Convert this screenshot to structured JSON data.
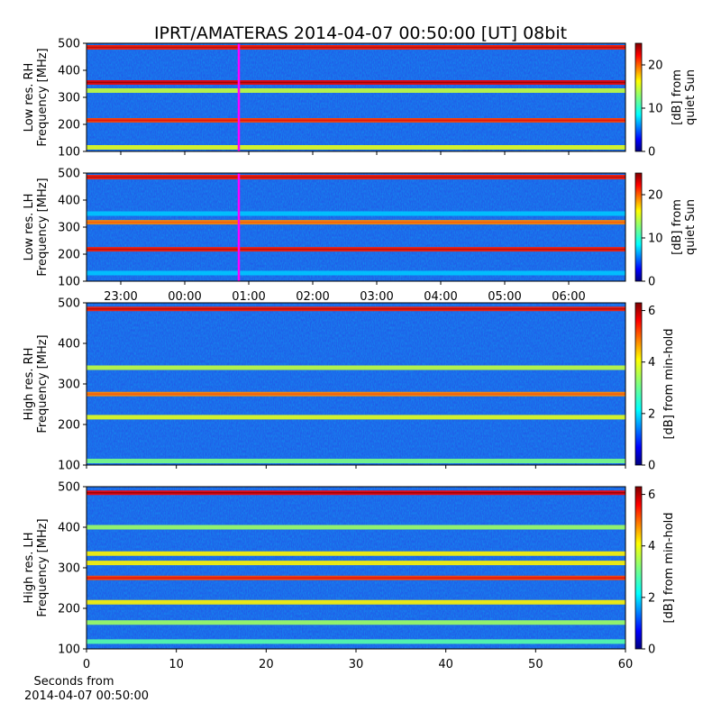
{
  "figure": {
    "title": "IPRT/AMATERAS 2014-04-07 00:50:00 [UT]   08bit"
  },
  "colors": {
    "cmap": [
      "#00007f",
      "#0000ff",
      "#007fff",
      "#00ffff",
      "#7fff7f",
      "#ffff00",
      "#ff7f00",
      "#ff0000",
      "#7f0000"
    ],
    "marker_line": "#ff00ff",
    "background_spectrum": "#1f5fe8"
  },
  "chart_data": [
    {
      "type": "heatmap",
      "ylabel_line1": "Low res. RH",
      "ylabel_line2": "Frequency [MHz]",
      "ylim": [
        100,
        500
      ],
      "yticks": [
        "100",
        "200",
        "300",
        "400",
        "500"
      ],
      "xticks": [],
      "marker_time": "00:50",
      "colorbar": {
        "label_line1": "[dB] from",
        "label_line2": "quiet Sun",
        "range": [
          0,
          25
        ],
        "ticks": [
          "0",
          "10",
          "20"
        ]
      },
      "bands_mhz": [
        {
          "f": 485,
          "level": 0.85
        },
        {
          "f": 355,
          "level": 0.9
        },
        {
          "f": 325,
          "level": 0.45
        },
        {
          "f": 215,
          "level": 0.8
        },
        {
          "f": 115,
          "level": 0.5
        }
      ]
    },
    {
      "type": "heatmap",
      "ylabel_line1": "Low res. LH",
      "ylabel_line2": "Frequency [MHz]",
      "ylim": [
        100,
        500
      ],
      "yticks": [
        "100",
        "200",
        "300",
        "400",
        "500"
      ],
      "xticks": [
        "23:00",
        "00:00",
        "01:00",
        "02:00",
        "03:00",
        "04:00",
        "05:00",
        "06:00"
      ],
      "marker_time": "00:50",
      "colorbar": {
        "label_line1": "[dB] from",
        "label_line2": "quiet Sun",
        "range": [
          0,
          25
        ],
        "ticks": [
          "0",
          "10",
          "20"
        ]
      },
      "bands_mhz": [
        {
          "f": 485,
          "level": 0.85
        },
        {
          "f": 350,
          "level": 0.1
        },
        {
          "f": 318,
          "level": 0.7
        },
        {
          "f": 218,
          "level": 0.85
        },
        {
          "f": 130,
          "level": 0.1
        }
      ]
    },
    {
      "type": "heatmap",
      "ylabel_line1": "High res. RH",
      "ylabel_line2": "Frequency [MHz]",
      "ylim": [
        100,
        500
      ],
      "yticks": [
        "100",
        "200",
        "300",
        "400",
        "500"
      ],
      "xticks": [],
      "colorbar": {
        "label_line1": "[dB] from min-hold",
        "label_line2": "",
        "range": [
          0,
          6.3
        ],
        "ticks": [
          "0",
          "2",
          "4",
          "6"
        ]
      },
      "bands_mhz": [
        {
          "f": 485,
          "level": 0.85
        },
        {
          "f": 340,
          "level": 0.45
        },
        {
          "f": 275,
          "level": 0.7
        },
        {
          "f": 218,
          "level": 0.5
        },
        {
          "f": 110,
          "level": 0.35
        }
      ]
    },
    {
      "type": "heatmap",
      "ylabel_line1": "High res. LH",
      "ylabel_line2": "Frequency [MHz]",
      "ylim": [
        100,
        500
      ],
      "yticks": [
        "100",
        "200",
        "300",
        "400",
        "500"
      ],
      "xticks": [
        "0",
        "10",
        "20",
        "30",
        "40",
        "50",
        "60"
      ],
      "xlim": [
        0,
        60
      ],
      "xlabel_line1": "Seconds from",
      "xlabel_line2": "2014-04-07 00:50:00",
      "colorbar": {
        "label_line1": "[dB] from min-hold",
        "label_line2": "",
        "range": [
          0,
          6.3
        ],
        "ticks": [
          "0",
          "2",
          "4",
          "6"
        ]
      },
      "bands_mhz": [
        {
          "f": 485,
          "level": 0.9
        },
        {
          "f": 400,
          "level": 0.4
        },
        {
          "f": 335,
          "level": 0.55
        },
        {
          "f": 312,
          "level": 0.55
        },
        {
          "f": 275,
          "level": 0.8
        },
        {
          "f": 215,
          "level": 0.55
        },
        {
          "f": 165,
          "level": 0.4
        },
        {
          "f": 118,
          "level": 0.3
        }
      ]
    }
  ]
}
